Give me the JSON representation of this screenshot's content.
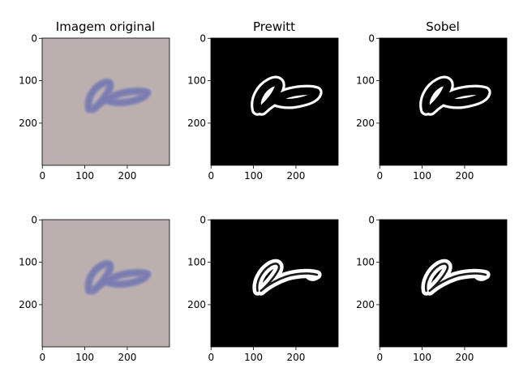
{
  "figure": {
    "columns": [
      {
        "title": "Imagem original",
        "kind": "original"
      },
      {
        "title": "Prewitt",
        "kind": "edge"
      },
      {
        "title": "Sobel",
        "kind": "edge"
      }
    ],
    "rows": 2
  },
  "chart_data": [
    {
      "type": "image",
      "title": "Imagem original",
      "xticks": [
        0,
        100,
        200
      ],
      "yticks": [
        0,
        100,
        200
      ],
      "xlim": [
        0,
        299
      ],
      "ylim": [
        299,
        0
      ]
    },
    {
      "type": "image",
      "title": "Prewitt",
      "xticks": [
        0,
        100,
        200
      ],
      "yticks": [
        0,
        100,
        200
      ],
      "xlim": [
        0,
        299
      ],
      "ylim": [
        299,
        0
      ]
    },
    {
      "type": "image",
      "title": "Sobel",
      "xticks": [
        0,
        100,
        200
      ],
      "yticks": [
        0,
        100,
        200
      ],
      "xlim": [
        0,
        299
      ],
      "ylim": [
        299,
        0
      ]
    },
    {
      "type": "image",
      "title": "",
      "xticks": [
        0,
        100,
        200
      ],
      "yticks": [
        0,
        100,
        200
      ],
      "xlim": [
        0,
        299
      ],
      "ylim": [
        299,
        0
      ]
    },
    {
      "type": "image",
      "title": "",
      "xticks": [
        0,
        100,
        200
      ],
      "yticks": [
        0,
        100,
        200
      ],
      "xlim": [
        0,
        299
      ],
      "ylim": [
        299,
        0
      ]
    },
    {
      "type": "image",
      "title": "",
      "xticks": [
        0,
        100,
        200
      ],
      "yticks": [
        0,
        100,
        200
      ],
      "xlim": [
        0,
        299
      ],
      "ylim": [
        299,
        0
      ]
    }
  ],
  "colors": {
    "original_background": "#b9adad",
    "stroke_blue": "#7c7fb6",
    "edge_background": "#000000",
    "edge_foreground": "#ffffff"
  }
}
